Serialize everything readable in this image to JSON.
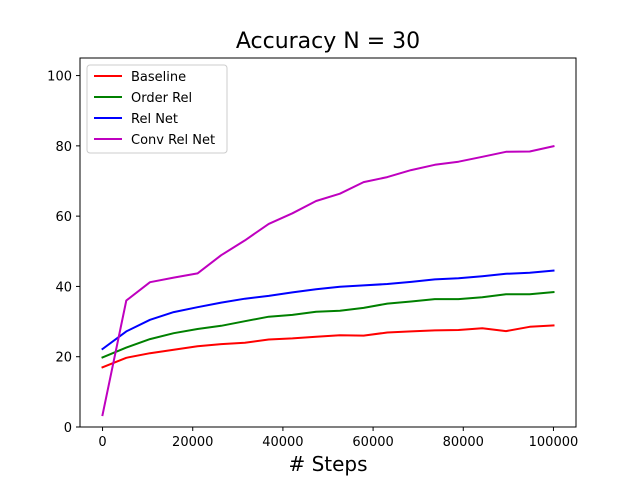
{
  "chart_data": {
    "type": "line",
    "title": "Accuracy N = 30",
    "xlabel": "# Steps",
    "ylabel": "",
    "xlim": [
      -5000,
      105000
    ],
    "ylim": [
      0,
      105
    ],
    "xticks": [
      0,
      20000,
      40000,
      60000,
      80000,
      100000
    ],
    "yticks": [
      0,
      20,
      40,
      60,
      80,
      100
    ],
    "grid": false,
    "legend_position": "top-left",
    "x": [
      0,
      5263,
      10526,
      15789,
      21053,
      26316,
      31579,
      36842,
      42105,
      47368,
      52632,
      57895,
      63158,
      68421,
      73684,
      78947,
      84211,
      89474,
      94737,
      100000
    ],
    "series": [
      {
        "name": "Baseline",
        "color": "#ff0000",
        "values": [
          17.0,
          19.7,
          21.0,
          22.0,
          23.0,
          23.6,
          24.0,
          24.9,
          25.2,
          25.7,
          26.1,
          26.0,
          26.9,
          27.2,
          27.5,
          27.6,
          28.1,
          27.3,
          28.5,
          28.9
        ]
      },
      {
        "name": "Order Rel",
        "color": "#008000",
        "values": [
          19.8,
          22.6,
          25.0,
          26.7,
          27.9,
          28.8,
          30.1,
          31.4,
          31.9,
          32.8,
          33.1,
          33.9,
          35.1,
          35.7,
          36.4,
          36.4,
          36.9,
          37.8,
          37.8,
          38.4
        ]
      },
      {
        "name": "Rel Net",
        "color": "#0000ff",
        "values": [
          22.2,
          27.2,
          30.5,
          32.7,
          34.1,
          35.4,
          36.5,
          37.3,
          38.3,
          39.2,
          39.9,
          40.3,
          40.7,
          41.3,
          42.0,
          42.3,
          42.9,
          43.6,
          43.9,
          44.5
        ]
      },
      {
        "name": "Conv Rel Net",
        "color": "#bf00bf",
        "values": [
          3.4,
          36.0,
          41.2,
          42.5,
          43.7,
          48.9,
          53.1,
          57.8,
          60.8,
          64.3,
          66.4,
          69.7,
          71.1,
          73.1,
          74.6,
          75.5,
          76.9,
          78.3,
          78.4,
          79.9
        ]
      }
    ]
  }
}
